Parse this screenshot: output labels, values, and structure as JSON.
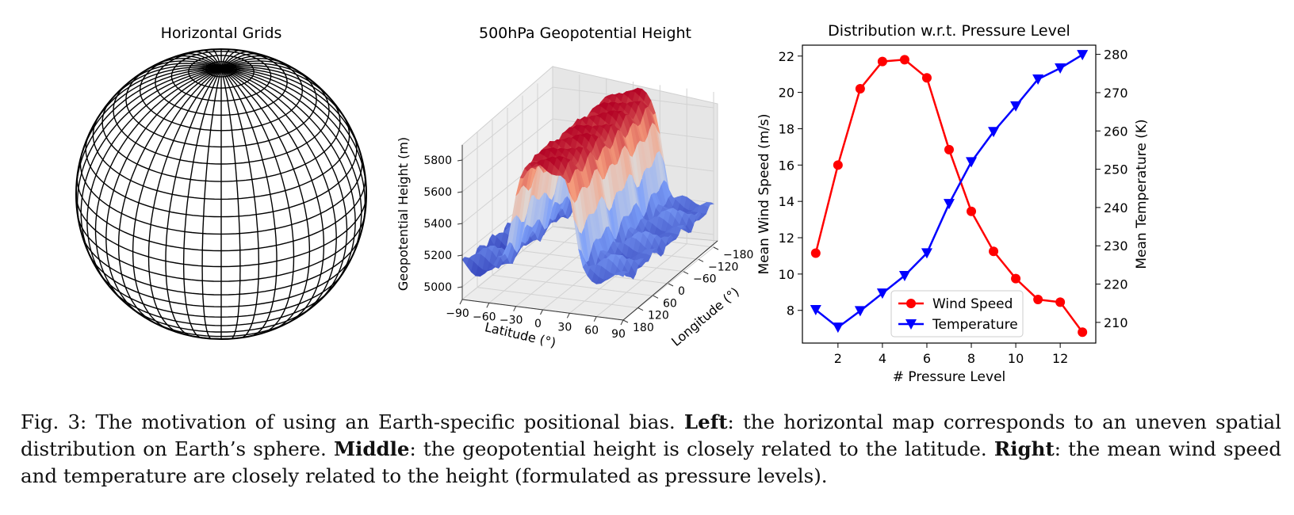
{
  "figure": {
    "globe": {
      "title": "Horizontal Grids"
    },
    "surface": {
      "title": "500hPa Geopotential Height",
      "zlabel": "Geopotential Height (m)",
      "xlabel": "Latitude (°)",
      "ylabel": "Longitude (°)",
      "lat_ticks": [
        "−90",
        "−60",
        "−30",
        "0",
        "30",
        "60",
        "90"
      ],
      "lon_ticks": [
        "−180",
        "−120",
        "−60",
        "0",
        "60",
        "120",
        "180"
      ],
      "z_ticks": [
        "5000",
        "5200",
        "5400",
        "5600",
        "5800"
      ]
    }
  },
  "caption": {
    "prefix": "Fig. 3: The motivation of using an Earth-specific positional bias.",
    "left_label": "Left",
    "left_text": ": the horizontal map corresponds to an uneven spatial distribution on Earth’s sphere.",
    "middle_label": "Middle",
    "middle_text": ": the geopotential height is closely related to the latitude.",
    "right_label": "Right",
    "right_text": ": the mean wind speed and temperature are closely related to the height (formulated as pressure levels)."
  },
  "chart_data": [
    {
      "type": "line",
      "title": "Distribution w.r.t. Pressure Level",
      "xlabel": "# Pressure Level",
      "ylabel": "Mean Wind Speed (m/s)",
      "y2label": "Mean Temperature (K)",
      "x": [
        1,
        2,
        3,
        4,
        5,
        6,
        7,
        8,
        9,
        10,
        11,
        12,
        13
      ],
      "xlim": [
        0.4,
        13.6
      ],
      "ylim": [
        6.2,
        22.6
      ],
      "y2lim": [
        204.6,
        282.4
      ],
      "xticks": [
        2,
        4,
        6,
        8,
        10,
        12
      ],
      "yticks": [
        8,
        10,
        12,
        14,
        16,
        18,
        20,
        22
      ],
      "y2ticks": [
        210,
        220,
        230,
        240,
        250,
        260,
        270,
        280
      ],
      "legend_position": "lower-center",
      "series": [
        {
          "name": "Wind Speed",
          "axis": "left",
          "color": "#ff0000",
          "marker": "circle",
          "values": [
            11.15,
            16.0,
            20.2,
            21.7,
            21.8,
            20.8,
            16.85,
            13.45,
            11.25,
            9.75,
            8.6,
            8.45,
            6.8
          ]
        },
        {
          "name": "Temperature",
          "axis": "right",
          "color": "#0000ff",
          "marker": "triangle-down",
          "values": [
            213.3,
            208.7,
            213.0,
            217.6,
            222.2,
            228.1,
            241.0,
            251.9,
            259.8,
            266.5,
            273.5,
            276.4,
            279.9
          ]
        }
      ]
    }
  ]
}
